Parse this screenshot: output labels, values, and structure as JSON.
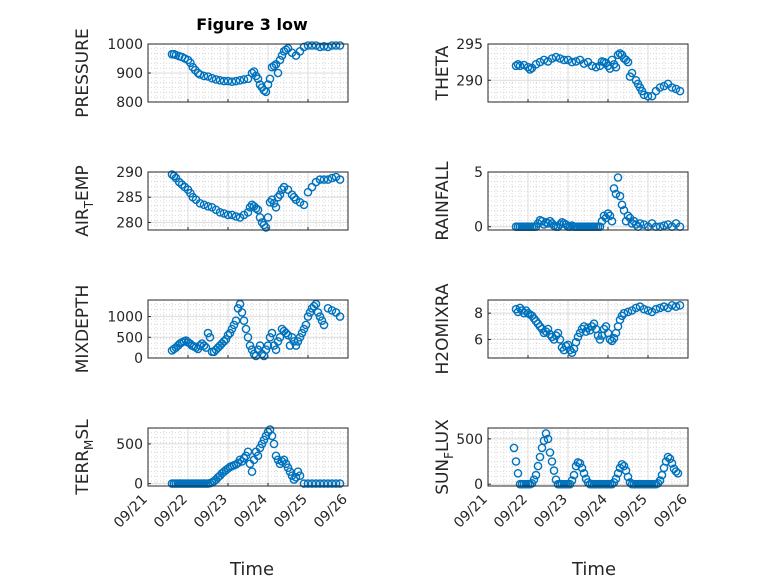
{
  "figure": {
    "title": "Figure 3 low",
    "xlabel": "Time"
  },
  "style": {
    "marker_color": "#0072BD",
    "axis_color": "#262626",
    "grid_color": "#cfcfcf"
  },
  "xticks": [
    "09/21",
    "09/22",
    "09/23",
    "09/24",
    "09/25",
    "09/26"
  ],
  "chart_data": [
    {
      "type": "scatter",
      "ylabel": "PRESSURE",
      "ylabel_sub": "",
      "xlim": [
        0,
        5
      ],
      "ylim": [
        800,
        1000
      ],
      "yticks": [
        "800",
        "900",
        "1000"
      ],
      "grid": "dotted",
      "show_xticklabels": false,
      "x": [
        0.6,
        0.65,
        0.7,
        0.78,
        0.85,
        0.92,
        1.0,
        1.06,
        1.12,
        1.18,
        1.25,
        1.3,
        1.4,
        1.5,
        1.6,
        1.7,
        1.8,
        1.9,
        2.0,
        2.1,
        2.2,
        2.3,
        2.4,
        2.5,
        2.6,
        2.65,
        2.7,
        2.75,
        2.8,
        2.85,
        2.9,
        2.95,
        3.0,
        3.05,
        3.1,
        3.15,
        3.2,
        3.25,
        3.3,
        3.35,
        3.4,
        3.45,
        3.5,
        3.6,
        3.7,
        3.8,
        3.9,
        4.0,
        4.1,
        4.2,
        4.3,
        4.4,
        4.5,
        4.6,
        4.7,
        4.8
      ],
      "y": [
        965,
        965,
        962,
        958,
        955,
        950,
        945,
        935,
        920,
        910,
        900,
        895,
        890,
        888,
        882,
        878,
        875,
        872,
        872,
        870,
        872,
        875,
        878,
        880,
        900,
        905,
        890,
        880,
        860,
        850,
        840,
        835,
        860,
        880,
        920,
        925,
        930,
        900,
        945,
        960,
        975,
        980,
        985,
        970,
        960,
        975,
        990,
        995,
        995,
        995,
        990,
        992,
        990,
        995,
        995,
        995
      ]
    },
    {
      "type": "scatter",
      "ylabel": "THETA",
      "ylabel_sub": "",
      "xlim": [
        0,
        5
      ],
      "ylim": [
        287,
        295
      ],
      "yticks": [
        "290",
        "295"
      ],
      "grid": "dotted",
      "show_xticklabels": false,
      "x": [
        0.7,
        0.75,
        0.8,
        0.9,
        1.0,
        1.05,
        1.1,
        1.2,
        1.3,
        1.4,
        1.5,
        1.6,
        1.7,
        1.8,
        1.9,
        2.0,
        2.1,
        2.2,
        2.3,
        2.4,
        2.5,
        2.6,
        2.7,
        2.8,
        2.85,
        2.9,
        2.95,
        3.0,
        3.05,
        3.1,
        3.15,
        3.2,
        3.25,
        3.3,
        3.35,
        3.4,
        3.45,
        3.5,
        3.55,
        3.6,
        3.7,
        3.75,
        3.8,
        3.85,
        3.9,
        4.0,
        4.1,
        4.2,
        4.3,
        4.4,
        4.5,
        4.6,
        4.7,
        4.8
      ],
      "y": [
        292.0,
        292.2,
        292.0,
        292.1,
        291.8,
        291.5,
        291.7,
        292.2,
        292.5,
        292.8,
        292.6,
        293.0,
        293.2,
        293.0,
        292.8,
        292.8,
        292.5,
        292.6,
        292.8,
        292.3,
        292.5,
        292.0,
        291.8,
        292.0,
        292.6,
        292.5,
        292.4,
        292.0,
        291.6,
        292.8,
        292.2,
        291.8,
        293.5,
        293.7,
        293.5,
        293.0,
        292.8,
        292.5,
        290.5,
        291.0,
        290.0,
        289.5,
        289.0,
        288.5,
        288.0,
        287.8,
        287.8,
        288.5,
        289.0,
        289.2,
        289.5,
        289.0,
        288.8,
        288.5
      ]
    },
    {
      "type": "scatter",
      "ylabel": "AIR",
      "ylabel_sub": "T",
      "ylabel_tail": "EMP",
      "xlim": [
        0,
        5
      ],
      "ylim": [
        278.5,
        290
      ],
      "yticks": [
        "280",
        "285",
        "290"
      ],
      "grid": "dotted",
      "show_xticklabels": false,
      "x": [
        0.6,
        0.65,
        0.7,
        0.78,
        0.85,
        0.92,
        1.0,
        1.06,
        1.12,
        1.2,
        1.3,
        1.4,
        1.5,
        1.6,
        1.7,
        1.8,
        1.9,
        2.0,
        2.1,
        2.2,
        2.3,
        2.4,
        2.5,
        2.55,
        2.6,
        2.65,
        2.7,
        2.75,
        2.8,
        2.85,
        2.9,
        2.95,
        3.0,
        3.05,
        3.1,
        3.15,
        3.2,
        3.25,
        3.3,
        3.35,
        3.4,
        3.5,
        3.6,
        3.65,
        3.7,
        3.8,
        3.9,
        4.0,
        4.1,
        4.2,
        4.3,
        4.4,
        4.5,
        4.6,
        4.7,
        4.8
      ],
      "y": [
        289.5,
        289.2,
        288.8,
        288.0,
        287.5,
        287.0,
        286.5,
        285.8,
        285.0,
        284.5,
        283.8,
        283.5,
        283.2,
        283.0,
        282.5,
        282.0,
        281.8,
        281.5,
        281.5,
        281.2,
        281.0,
        281.5,
        282.0,
        283.0,
        283.5,
        283.2,
        282.8,
        282.5,
        281.0,
        280.0,
        279.5,
        279.0,
        281.0,
        284.0,
        284.5,
        283.8,
        283.0,
        285.0,
        285.5,
        286.5,
        287.0,
        286.5,
        285.5,
        285.0,
        284.5,
        284.0,
        283.5,
        286.0,
        287.0,
        288.0,
        288.5,
        288.5,
        288.5,
        288.8,
        289.0,
        288.5
      ]
    },
    {
      "type": "scatter",
      "ylabel": "RAINFALL",
      "ylabel_sub": "",
      "xlim": [
        0,
        5
      ],
      "ylim": [
        -0.3,
        5
      ],
      "yticks": [
        "0",
        "5"
      ],
      "grid": "dotted",
      "show_xticklabels": false,
      "x": [
        0.7,
        0.75,
        0.8,
        0.85,
        0.9,
        0.95,
        1.0,
        1.05,
        1.1,
        1.15,
        1.2,
        1.25,
        1.3,
        1.35,
        1.4,
        1.45,
        1.5,
        1.55,
        1.6,
        1.65,
        1.7,
        1.75,
        1.8,
        1.85,
        1.9,
        1.95,
        2.0,
        2.05,
        2.1,
        2.15,
        2.2,
        2.25,
        2.3,
        2.35,
        2.4,
        2.45,
        2.5,
        2.55,
        2.6,
        2.65,
        2.7,
        2.75,
        2.8,
        2.85,
        2.9,
        2.95,
        3.0,
        3.05,
        3.1,
        3.15,
        3.2,
        3.25,
        3.3,
        3.35,
        3.4,
        3.45,
        3.5,
        3.55,
        3.6,
        3.65,
        3.7,
        3.75,
        3.8,
        3.9,
        4.0,
        4.1,
        4.2,
        4.3,
        4.4,
        4.5,
        4.6,
        4.7,
        4.8
      ],
      "y": [
        0,
        0,
        0,
        0,
        0,
        0,
        0,
        0,
        0,
        0,
        0,
        0.3,
        0.6,
        0.5,
        0.2,
        0.4,
        0.3,
        0.5,
        0.3,
        0.1,
        0,
        0,
        0.2,
        0.4,
        0.3,
        0.2,
        0,
        0,
        0.1,
        0,
        0,
        0,
        0,
        0,
        0,
        0,
        0,
        0,
        0,
        0,
        0,
        0,
        0,
        0.5,
        1.0,
        0.8,
        1.2,
        1.0,
        0.5,
        3.5,
        3.0,
        4.5,
        2.8,
        2.0,
        1.5,
        0.5,
        1.0,
        0.8,
        0.3,
        0.5,
        0.2,
        0,
        0.3,
        0.2,
        0,
        0.3,
        0,
        0,
        0.1,
        0.2,
        0,
        0.3,
        0
      ]
    },
    {
      "type": "scatter",
      "ylabel": "MIXDEPTH",
      "ylabel_sub": "",
      "xlim": [
        0,
        5
      ],
      "ylim": [
        0,
        1400
      ],
      "yticks": [
        "0",
        "500",
        "1000"
      ],
      "grid": "dotted",
      "show_xticklabels": false,
      "x": [
        0.6,
        0.65,
        0.7,
        0.75,
        0.8,
        0.85,
        0.9,
        0.95,
        1.0,
        1.05,
        1.1,
        1.15,
        1.2,
        1.25,
        1.3,
        1.35,
        1.4,
        1.45,
        1.5,
        1.55,
        1.6,
        1.65,
        1.7,
        1.75,
        1.8,
        1.85,
        1.9,
        1.95,
        2.0,
        2.05,
        2.1,
        2.15,
        2.2,
        2.25,
        2.3,
        2.35,
        2.4,
        2.45,
        2.5,
        2.55,
        2.6,
        2.65,
        2.7,
        2.75,
        2.8,
        2.85,
        2.9,
        2.95,
        3.0,
        3.05,
        3.1,
        3.15,
        3.2,
        3.25,
        3.3,
        3.35,
        3.4,
        3.45,
        3.5,
        3.55,
        3.6,
        3.65,
        3.7,
        3.75,
        3.8,
        3.85,
        3.9,
        3.95,
        4.0,
        4.05,
        4.1,
        4.15,
        4.2,
        4.25,
        4.3,
        4.35,
        4.4,
        4.5,
        4.6,
        4.7,
        4.8
      ],
      "y": [
        180,
        220,
        250,
        300,
        350,
        380,
        400,
        420,
        380,
        350,
        300,
        280,
        250,
        220,
        300,
        350,
        300,
        250,
        600,
        500,
        150,
        150,
        200,
        250,
        300,
        350,
        400,
        450,
        550,
        600,
        700,
        800,
        900,
        1200,
        1300,
        1100,
        900,
        700,
        500,
        300,
        200,
        100,
        50,
        200,
        300,
        100,
        50,
        200,
        300,
        500,
        600,
        300,
        200,
        400,
        500,
        700,
        650,
        600,
        550,
        300,
        500,
        400,
        300,
        400,
        500,
        600,
        700,
        800,
        1000,
        1100,
        1200,
        1250,
        1300,
        1100,
        1000,
        900,
        800,
        1200,
        1150,
        1100,
        1000
      ]
    },
    {
      "type": "scatter",
      "ylabel": "H2OMIXRA",
      "ylabel_sub": "",
      "xlim": [
        0,
        5
      ],
      "ylim": [
        4.6,
        9
      ],
      "yticks": [
        "6",
        "8"
      ],
      "grid": "dotted",
      "show_xticklabels": false,
      "x": [
        0.7,
        0.75,
        0.8,
        0.85,
        0.9,
        0.95,
        1.0,
        1.05,
        1.1,
        1.15,
        1.2,
        1.25,
        1.3,
        1.35,
        1.4,
        1.45,
        1.5,
        1.55,
        1.6,
        1.65,
        1.7,
        1.75,
        1.8,
        1.85,
        1.9,
        1.95,
        2.0,
        2.05,
        2.1,
        2.15,
        2.2,
        2.25,
        2.3,
        2.35,
        2.4,
        2.45,
        2.5,
        2.55,
        2.6,
        2.65,
        2.7,
        2.75,
        2.8,
        2.85,
        2.9,
        2.95,
        3.0,
        3.05,
        3.1,
        3.15,
        3.2,
        3.25,
        3.3,
        3.35,
        3.4,
        3.5,
        3.6,
        3.7,
        3.8,
        3.9,
        4.0,
        4.1,
        4.2,
        4.3,
        4.4,
        4.5,
        4.6,
        4.7,
        4.8
      ],
      "y": [
        8.3,
        8.1,
        8.4,
        8.2,
        8.0,
        8.2,
        8.0,
        7.9,
        7.8,
        7.6,
        7.4,
        7.2,
        7.0,
        6.8,
        6.5,
        6.6,
        6.8,
        6.4,
        6.2,
        6.0,
        6.3,
        6.5,
        6.0,
        5.4,
        5.2,
        5.5,
        5.6,
        5.2,
        5.0,
        5.3,
        5.8,
        6.2,
        6.5,
        6.8,
        7.0,
        6.6,
        6.9,
        6.7,
        7.0,
        7.2,
        6.8,
        6.3,
        6.0,
        6.3,
        6.8,
        7.0,
        6.5,
        6.0,
        5.9,
        6.1,
        6.5,
        7.0,
        7.5,
        7.8,
        8.0,
        8.1,
        8.2,
        8.4,
        8.5,
        8.3,
        8.2,
        8.1,
        8.3,
        8.4,
        8.5,
        8.4,
        8.6,
        8.5,
        8.6
      ]
    },
    {
      "type": "scatter",
      "ylabel": "TERR",
      "ylabel_sub": "M",
      "ylabel_tail": "SL",
      "xlim": [
        0,
        5
      ],
      "ylim": [
        -30,
        700
      ],
      "yticks": [
        "0",
        "500"
      ],
      "grid": "dotted",
      "show_xticklabels": true,
      "x": [
        0.6,
        0.65,
        0.7,
        0.75,
        0.8,
        0.85,
        0.9,
        0.95,
        1.0,
        1.05,
        1.1,
        1.15,
        1.2,
        1.25,
        1.3,
        1.35,
        1.4,
        1.45,
        1.5,
        1.55,
        1.6,
        1.65,
        1.7,
        1.75,
        1.8,
        1.85,
        1.9,
        1.95,
        2.0,
        2.05,
        2.1,
        2.15,
        2.2,
        2.25,
        2.3,
        2.35,
        2.4,
        2.45,
        2.5,
        2.55,
        2.6,
        2.65,
        2.7,
        2.75,
        2.8,
        2.85,
        2.9,
        2.95,
        3.0,
        3.05,
        3.1,
        3.15,
        3.2,
        3.25,
        3.3,
        3.35,
        3.4,
        3.45,
        3.5,
        3.55,
        3.6,
        3.65,
        3.7,
        3.75,
        3.8,
        3.9,
        4.0,
        4.1,
        4.2,
        4.3,
        4.4,
        4.5,
        4.6,
        4.7,
        4.8
      ],
      "y": [
        0,
        0,
        0,
        0,
        0,
        0,
        0,
        0,
        0,
        0,
        0,
        0,
        0,
        0,
        0,
        0,
        0,
        0,
        0,
        5,
        15,
        30,
        50,
        80,
        100,
        130,
        150,
        170,
        190,
        210,
        220,
        230,
        240,
        260,
        300,
        280,
        320,
        350,
        400,
        250,
        150,
        300,
        400,
        350,
        450,
        500,
        550,
        600,
        650,
        680,
        600,
        500,
        350,
        300,
        250,
        280,
        300,
        250,
        200,
        150,
        100,
        50,
        80,
        150,
        100,
        0,
        0,
        0,
        0,
        0,
        0,
        0,
        0,
        0,
        0
      ]
    },
    {
      "type": "scatter",
      "ylabel": "SUN",
      "ylabel_sub": "F",
      "ylabel_tail": "LUX",
      "xlim": [
        0,
        5
      ],
      "ylim": [
        -20,
        620
      ],
      "yticks": [
        "0",
        "500"
      ],
      "grid": "dotted",
      "show_xticklabels": true,
      "x": [
        0.65,
        0.7,
        0.75,
        0.8,
        0.85,
        0.9,
        0.95,
        1.0,
        1.05,
        1.1,
        1.15,
        1.2,
        1.25,
        1.3,
        1.35,
        1.4,
        1.45,
        1.5,
        1.55,
        1.6,
        1.65,
        1.7,
        1.75,
        1.8,
        1.85,
        1.9,
        1.95,
        2.0,
        2.05,
        2.1,
        2.15,
        2.2,
        2.25,
        2.3,
        2.35,
        2.4,
        2.45,
        2.5,
        2.55,
        2.6,
        2.65,
        2.7,
        2.75,
        2.8,
        2.85,
        2.9,
        2.95,
        3.0,
        3.05,
        3.1,
        3.15,
        3.2,
        3.25,
        3.3,
        3.35,
        3.4,
        3.45,
        3.5,
        3.55,
        3.6,
        3.65,
        3.7,
        3.75,
        3.8,
        3.85,
        3.9,
        3.95,
        4.0,
        4.05,
        4.1,
        4.15,
        4.2,
        4.25,
        4.3,
        4.35,
        4.4,
        4.45,
        4.5,
        4.55,
        4.6,
        4.65,
        4.7,
        4.75
      ],
      "y": [
        400,
        250,
        120,
        0,
        0,
        0,
        0,
        0,
        0,
        10,
        50,
        100,
        200,
        300,
        400,
        480,
        560,
        500,
        350,
        250,
        150,
        50,
        0,
        0,
        0,
        0,
        0,
        0,
        0,
        40,
        100,
        200,
        240,
        230,
        180,
        120,
        60,
        20,
        0,
        0,
        0,
        0,
        0,
        0,
        0,
        0,
        0,
        0,
        0,
        0,
        20,
        60,
        120,
        180,
        220,
        200,
        150,
        80,
        20,
        0,
        0,
        0,
        0,
        0,
        0,
        0,
        0,
        0,
        0,
        0,
        0,
        0,
        10,
        40,
        100,
        180,
        250,
        300,
        280,
        230,
        170,
        140,
        120
      ]
    }
  ]
}
